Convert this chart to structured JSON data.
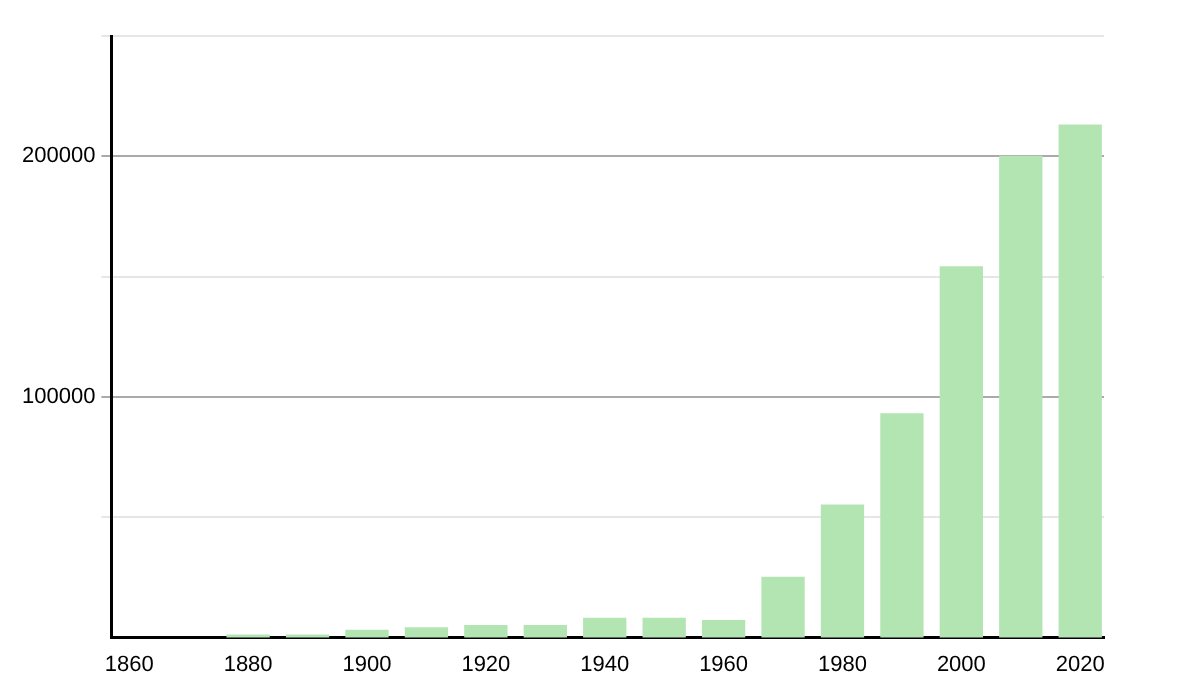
{
  "chart_data": {
    "type": "bar",
    "x": [
      1880,
      1890,
      1900,
      1910,
      1920,
      1930,
      1940,
      1950,
      1960,
      1970,
      1980,
      1990,
      2000,
      2010,
      2020
    ],
    "values": [
      1000,
      1000,
      3000,
      4000,
      5000,
      5000,
      8000,
      8000,
      7000,
      25000,
      55000,
      93000,
      154000,
      200000,
      213000
    ],
    "color": "#b3e5b3",
    "xlim": [
      1857,
      2024
    ],
    "xticks": [
      1860,
      1880,
      1900,
      1920,
      1940,
      1960,
      1980,
      2000,
      2020
    ],
    "ylim": [
      0,
      250000
    ],
    "yticks": [
      {
        "value": 50000,
        "label": null
      },
      100000,
      {
        "value": 150000,
        "label": null
      },
      200000,
      {
        "value": 250000,
        "label": null
      }
    ],
    "grid": "y"
  }
}
